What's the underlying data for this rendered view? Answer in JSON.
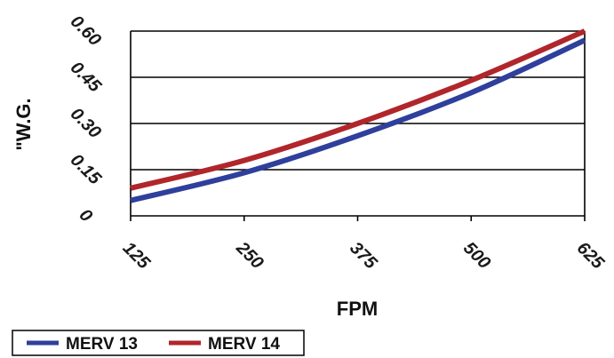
{
  "chart_data": {
    "type": "line",
    "xlabel": "FPM",
    "ylabel": "\"W.G.",
    "x_ticks": [
      "125",
      "250",
      "375",
      "500",
      "625"
    ],
    "y_ticks": [
      "0",
      "0.15",
      "0.30",
      "0.45",
      "0.60"
    ],
    "xlim": [
      125,
      625
    ],
    "ylim": [
      0,
      0.6
    ],
    "grid": "horizontal",
    "legend_position": "bottom-left",
    "series": [
      {
        "name": "MERV 13",
        "color": "#2e3f9c",
        "x": [
          125,
          250,
          375,
          500,
          625
        ],
        "y": [
          0.05,
          0.14,
          0.26,
          0.4,
          0.57
        ]
      },
      {
        "name": "MERV 14",
        "color": "#b0262b",
        "x": [
          125,
          250,
          375,
          500,
          625
        ],
        "y": [
          0.09,
          0.18,
          0.3,
          0.44,
          0.6
        ]
      }
    ]
  }
}
